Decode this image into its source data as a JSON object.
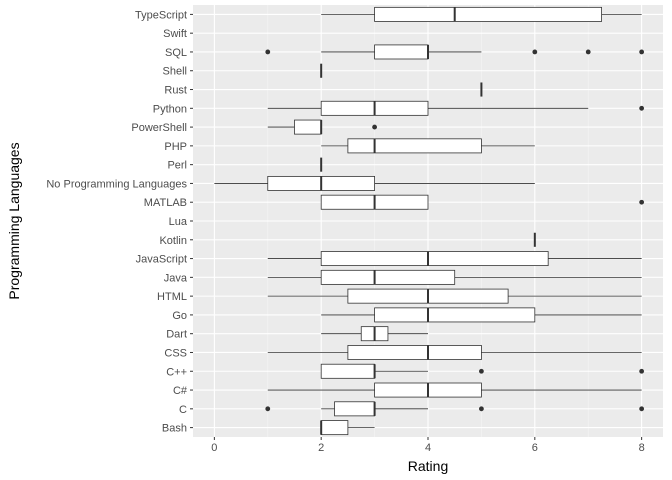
{
  "chart_data": {
    "type": "boxplot",
    "orientation": "horizontal",
    "xlabel": "Rating",
    "ylabel": "Programming Languages",
    "xlim": [
      -0.4,
      8.4
    ],
    "xticks": [
      0,
      2,
      4,
      6,
      8
    ],
    "grid": true,
    "legend": "none",
    "colors": {
      "panel_background": "#ebebeb",
      "grid_major": "#ffffff",
      "grid_minor": "#f5f5f5",
      "box_fill": "#ffffff",
      "box_stroke": "#333333",
      "outlier": "#333333"
    },
    "categories": [
      "Bash",
      "C",
      "C#",
      "C++",
      "CSS",
      "Dart",
      "Go",
      "HTML",
      "Java",
      "JavaScript",
      "Kotlin",
      "Lua",
      "MATLAB",
      "No Programming Languages",
      "Perl",
      "PHP",
      "PowerShell",
      "Python",
      "Rust",
      "Shell",
      "SQL",
      "Swift",
      "TypeScript"
    ],
    "boxes": [
      {
        "category": "Bash",
        "whisker_low": 2,
        "q1": 2,
        "median": 2,
        "q3": 2.5,
        "whisker_high": 3,
        "outliers": []
      },
      {
        "category": "C",
        "whisker_low": 2,
        "q1": 2.25,
        "median": 3,
        "q3": 3,
        "whisker_high": 4,
        "outliers": [
          1,
          5,
          8
        ]
      },
      {
        "category": "C#",
        "whisker_low": 1,
        "q1": 3,
        "median": 4,
        "q3": 5,
        "whisker_high": 8,
        "outliers": []
      },
      {
        "category": "C++",
        "whisker_low": 2,
        "q1": 2,
        "median": 3,
        "q3": 3,
        "whisker_high": 4,
        "outliers": [
          5,
          8
        ]
      },
      {
        "category": "CSS",
        "whisker_low": 1,
        "q1": 2.5,
        "median": 4,
        "q3": 5,
        "whisker_high": 8,
        "outliers": []
      },
      {
        "category": "Dart",
        "whisker_low": 2,
        "q1": 2.75,
        "median": 3,
        "q3": 3.25,
        "whisker_high": 4,
        "outliers": []
      },
      {
        "category": "Go",
        "whisker_low": 2,
        "q1": 3,
        "median": 4,
        "q3": 6,
        "whisker_high": 8,
        "outliers": []
      },
      {
        "category": "HTML",
        "whisker_low": 1,
        "q1": 2.5,
        "median": 4,
        "q3": 5.5,
        "whisker_high": 8,
        "outliers": []
      },
      {
        "category": "Java",
        "whisker_low": 1,
        "q1": 2,
        "median": 3,
        "q3": 4.5,
        "whisker_high": 8,
        "outliers": []
      },
      {
        "category": "JavaScript",
        "whisker_low": 1,
        "q1": 2,
        "median": 4,
        "q3": 6.25,
        "whisker_high": 8,
        "outliers": []
      },
      {
        "category": "Kotlin",
        "whisker_low": 6,
        "q1": 6,
        "median": 6,
        "q3": 6,
        "whisker_high": 6,
        "outliers": []
      },
      {
        "category": "Lua",
        "whisker_low": null,
        "q1": null,
        "median": null,
        "q3": null,
        "whisker_high": null,
        "outliers": []
      },
      {
        "category": "MATLAB",
        "whisker_low": 2,
        "q1": 2,
        "median": 3,
        "q3": 4,
        "whisker_high": 4,
        "outliers": [
          8
        ]
      },
      {
        "category": "No Programming Languages",
        "whisker_low": 0,
        "q1": 1,
        "median": 2,
        "q3": 3,
        "whisker_high": 6,
        "outliers": []
      },
      {
        "category": "Perl",
        "whisker_low": 2,
        "q1": 2,
        "median": 2,
        "q3": 2,
        "whisker_high": 2,
        "outliers": []
      },
      {
        "category": "PHP",
        "whisker_low": 2,
        "q1": 2.5,
        "median": 3,
        "q3": 5,
        "whisker_high": 6,
        "outliers": []
      },
      {
        "category": "PowerShell",
        "whisker_low": 1,
        "q1": 1.5,
        "median": 2,
        "q3": 2,
        "whisker_high": 2,
        "outliers": [
          3
        ]
      },
      {
        "category": "Python",
        "whisker_low": 1,
        "q1": 2,
        "median": 3,
        "q3": 4,
        "whisker_high": 7,
        "outliers": [
          8
        ]
      },
      {
        "category": "Rust",
        "whisker_low": 5,
        "q1": 5,
        "median": 5,
        "q3": 5,
        "whisker_high": 5,
        "outliers": []
      },
      {
        "category": "Shell",
        "whisker_low": 2,
        "q1": 2,
        "median": 2,
        "q3": 2,
        "whisker_high": 2,
        "outliers": []
      },
      {
        "category": "SQL",
        "whisker_low": 2,
        "q1": 3,
        "median": 4,
        "q3": 4,
        "whisker_high": 5,
        "outliers": [
          1,
          6,
          7,
          8
        ]
      },
      {
        "category": "Swift",
        "whisker_low": null,
        "q1": null,
        "median": null,
        "q3": null,
        "whisker_high": null,
        "outliers": []
      },
      {
        "category": "TypeScript",
        "whisker_low": 2,
        "q1": 3,
        "median": 4.5,
        "q3": 7.25,
        "whisker_high": 8,
        "outliers": []
      }
    ]
  }
}
